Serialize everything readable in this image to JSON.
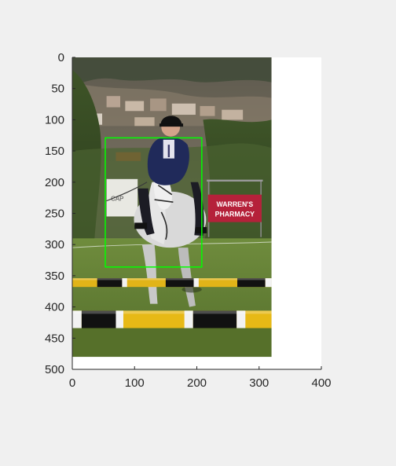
{
  "figure": {
    "background_color": "#f0f0f0",
    "axes_background_color": "#ffffff",
    "axis_color": "#262626"
  },
  "axes": {
    "x_ticks": [
      "0",
      "100",
      "200",
      "300",
      "400"
    ],
    "y_ticks": [
      "0",
      "50",
      "100",
      "150",
      "200",
      "250",
      "300",
      "350",
      "400",
      "450",
      "500"
    ],
    "xlim": [
      0,
      400
    ],
    "ylim": [
      0,
      500
    ],
    "y_direction": "reversed",
    "grid": false
  },
  "image": {
    "extent": {
      "width": 320,
      "height": 480
    }
  },
  "bounding_box": {
    "color": "#00ff00",
    "x_min": 53,
    "y_min": 129,
    "x_max": 208,
    "y_max": 336
  },
  "image_text": {
    "sign_line1": "WARREN'S",
    "sign_line2": "PHARMACY",
    "banner_text": "CAP"
  }
}
